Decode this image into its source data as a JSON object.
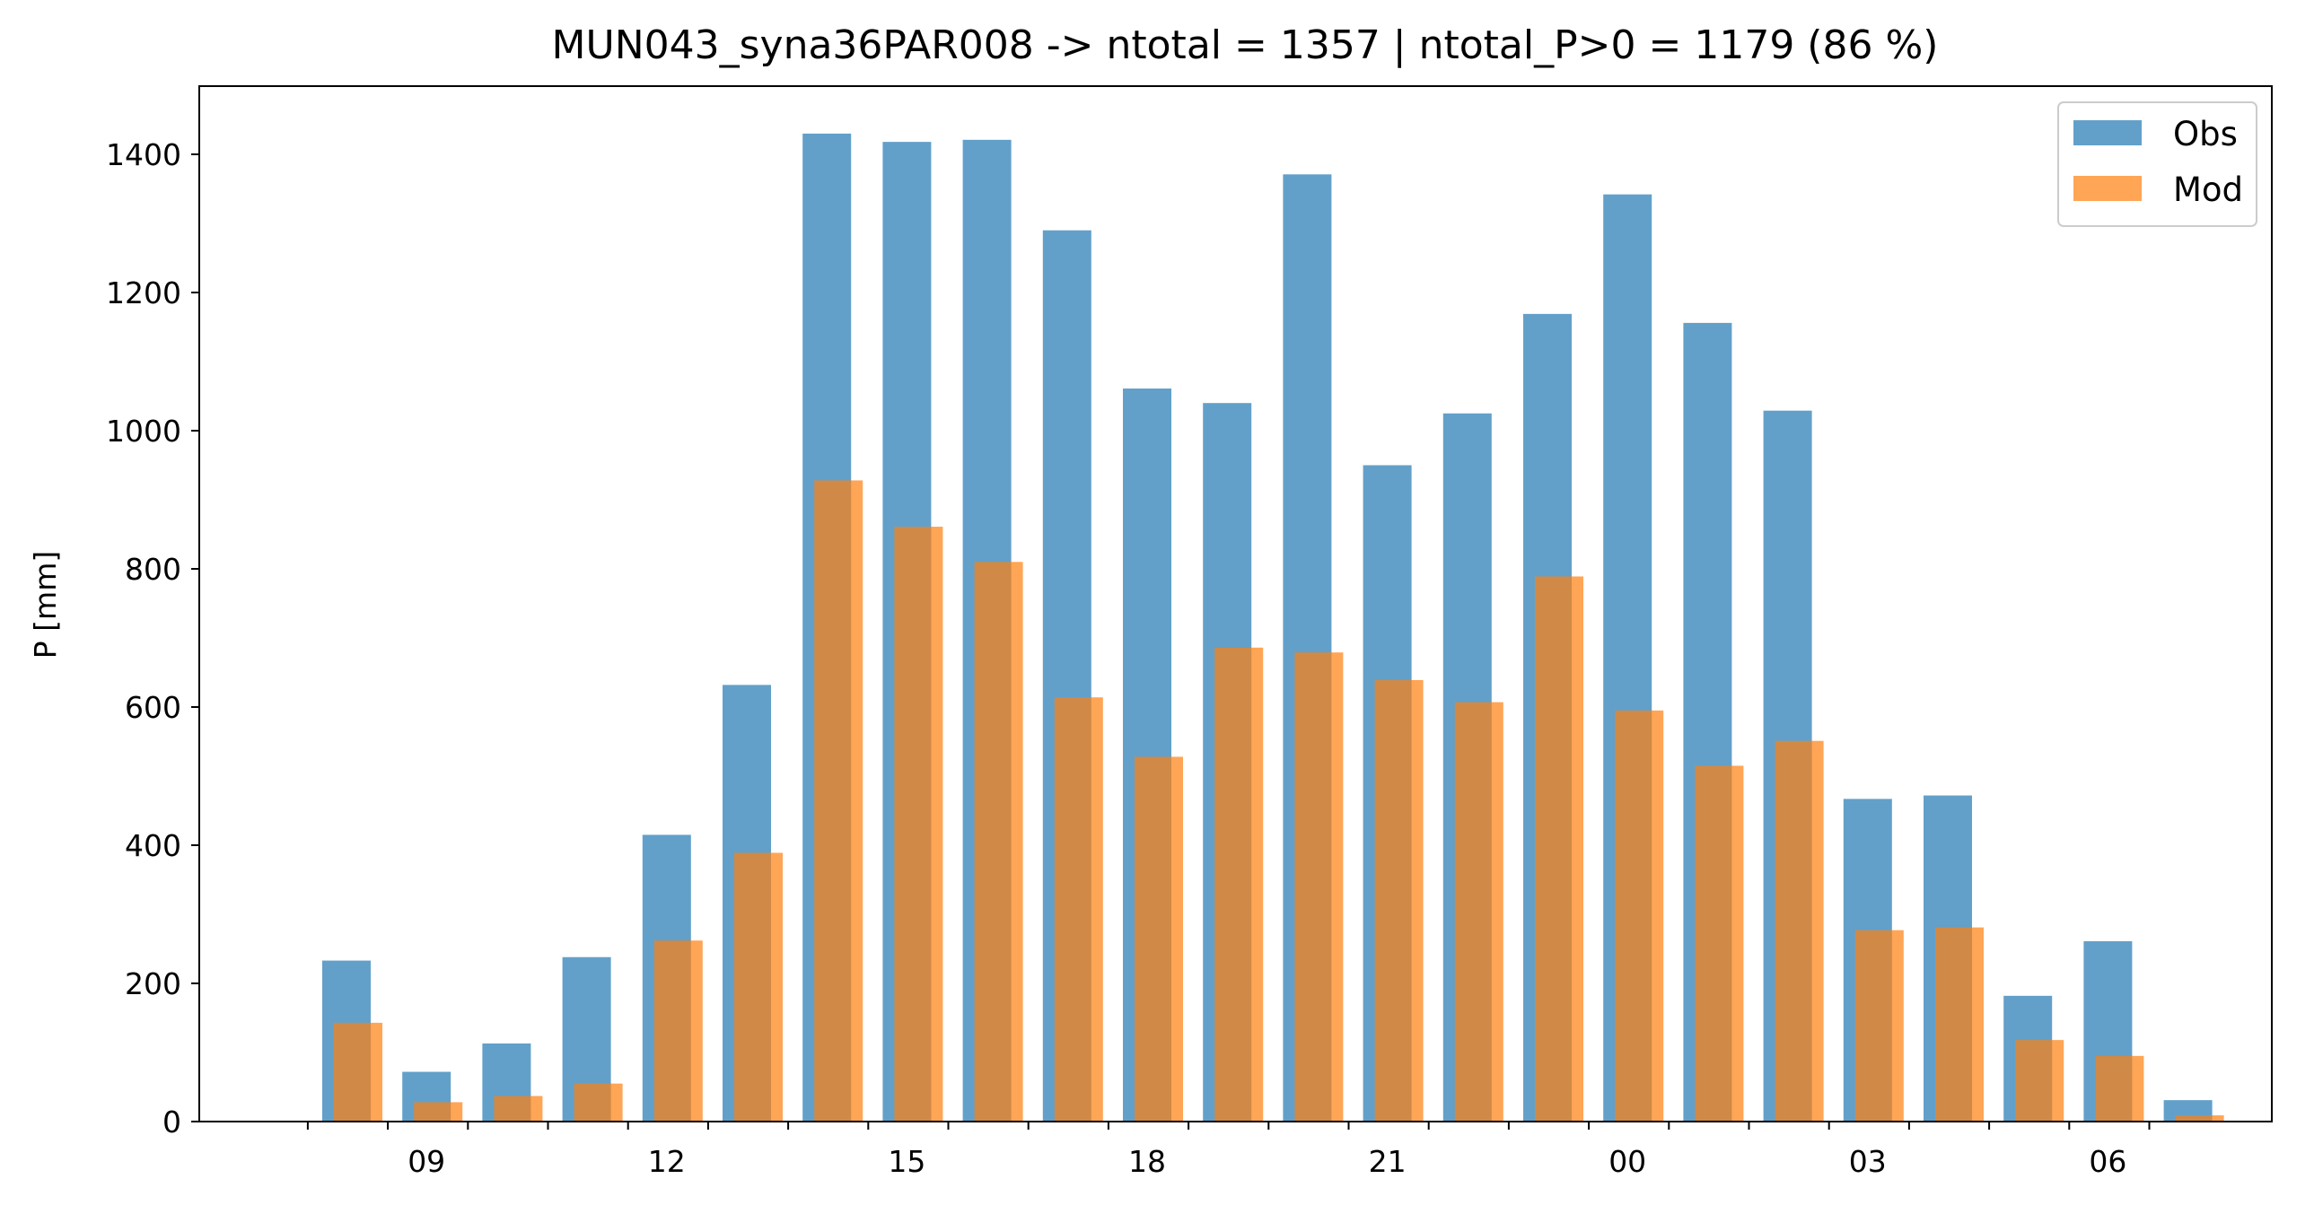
{
  "chart_data": {
    "type": "bar",
    "title": "MUN043_syna36PAR008 -> ntotal = 1357 | ntotal_P>0 = 1179 (86 %)",
    "xlabel": "",
    "ylabel": "P [mm]",
    "ylim": [
      0,
      1500
    ],
    "yticks": [
      0,
      200,
      400,
      600,
      800,
      1000,
      1200,
      1400
    ],
    "xtick_labels": [
      "09",
      "12",
      "15",
      "18",
      "21",
      "00",
      "03",
      "06"
    ],
    "hours": [
      "08",
      "09",
      "10",
      "11",
      "12",
      "13",
      "14",
      "15",
      "16",
      "17",
      "18",
      "19",
      "20",
      "21",
      "22",
      "23",
      "00",
      "01",
      "02",
      "03",
      "04",
      "05",
      "06",
      "07"
    ],
    "series": [
      {
        "name": "Obs",
        "color": "#1f77b4",
        "values": [
          233,
          72,
          113,
          238,
          415,
          632,
          1430,
          1418,
          1421,
          1290,
          1061,
          1040,
          1371,
          950,
          1025,
          1169,
          1342,
          1156,
          1029,
          467,
          472,
          182,
          261,
          31
        ]
      },
      {
        "name": "Mod",
        "color": "#ff7f0e",
        "values": [
          143,
          28,
          37,
          55,
          262,
          389,
          928,
          861,
          810,
          614,
          528,
          686,
          679,
          639,
          607,
          789,
          595,
          515,
          551,
          277,
          281,
          118,
          95,
          9
        ]
      }
    ],
    "grid": false,
    "legend_position": "top-right"
  }
}
